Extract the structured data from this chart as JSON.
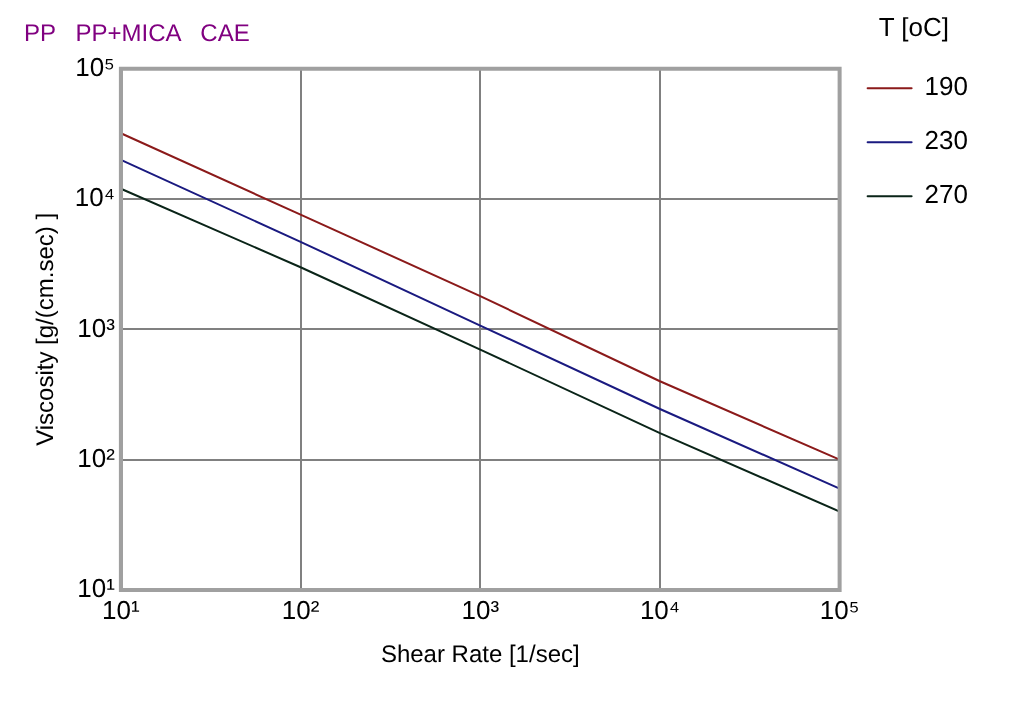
{
  "chart_data": {
    "type": "line",
    "title": "PP   PP+MICA   CAE",
    "xlabel": "Shear Rate [1/sec]",
    "ylabel": "Viscosity [g/(cm.sec) ]",
    "legend_title": "T [oC]",
    "x": [
      10,
      100,
      1000,
      10000,
      100000
    ],
    "series": [
      {
        "name": "190",
        "color": "#8b1a1a",
        "values": [
          32000,
          7600,
          1800,
          400,
          100
        ]
      },
      {
        "name": "230",
        "color": "#1a1a80",
        "values": [
          20000,
          4700,
          1070,
          245,
          60
        ]
      },
      {
        "name": "270",
        "color": "#0a2418",
        "values": [
          12000,
          3000,
          700,
          160,
          40
        ]
      }
    ],
    "log": "xy",
    "xlim": [
      10,
      100000
    ],
    "ylim": [
      10,
      100000
    ],
    "xticks": [
      {
        "value": 10,
        "label": "10¹"
      },
      {
        "value": 100,
        "label": "10²"
      },
      {
        "value": 1000,
        "label": "10³"
      },
      {
        "value": 10000,
        "label": "10⁴"
      },
      {
        "value": 100000,
        "label": "10⁵"
      }
    ],
    "yticks": [
      {
        "value": 10,
        "label": "10¹"
      },
      {
        "value": 100,
        "label": "10²"
      },
      {
        "value": 1000,
        "label": "10³"
      },
      {
        "value": 10000,
        "label": "10⁴"
      },
      {
        "value": 100000,
        "label": "10⁵"
      }
    ],
    "grid": true,
    "legend": "right",
    "marker": "none",
    "line_style": "solid"
  }
}
